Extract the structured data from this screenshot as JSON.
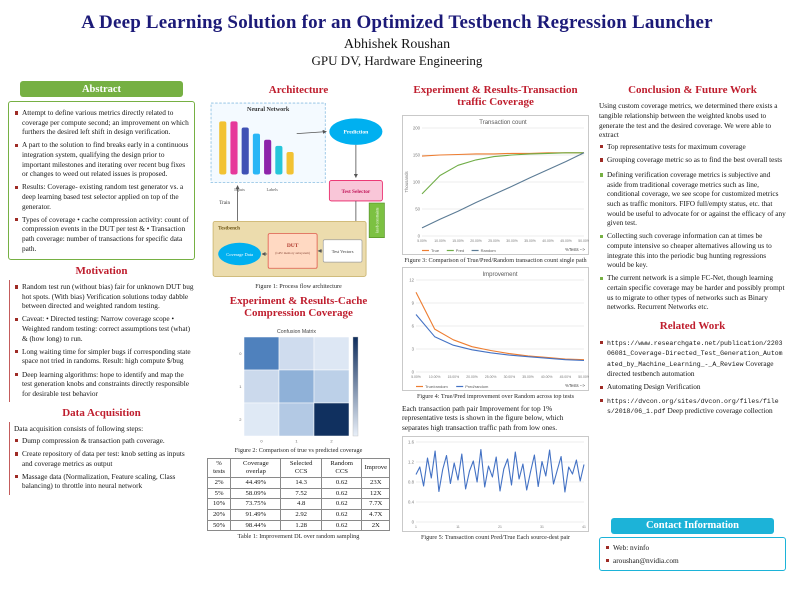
{
  "header": {
    "title": "A Deep Learning Solution for an Optimized Testbench Regression Launcher",
    "author": "Abhishek Roushan",
    "affiliation": "GPU DV, Hardware Engineering"
  },
  "abstract": {
    "heading": "Abstract",
    "bullets": [
      "Attempt to define various metrics directly related to coverage per compute second; an improvement on which furthers the desired left shift in design verification.",
      "A part to the solution to find breaks early in a continuous integration system, qualifying the design prior to important milestones and iterating over recent bug fixes or changes to weed out related issues is proposed.",
      "Results: Coverage- existing random test generator vs. a deep learning based test selector applied on top of the generator.",
      "Types of coverage • cache compression activity: count of compression events in the DUT per test & • Transaction path coverage: number of transactions for specific data path."
    ]
  },
  "motivation": {
    "heading": "Motivation",
    "bullets": [
      "Random test run (without bias) fair for unknown DUT bug hot spots. (With bias) Verification solutions today dabble between directed and weighted random testing.",
      "Caveat: • Directed testing: Narrow coverage scope • Weighted random testing: correct assumptions test (what) & (how long) to run.",
      "Long waiting time for simpler bugs if corresponding state space not tried in randoms. Result: high compute $/bug",
      "Deep learning algorithms: hope to identify and map the test generation knobs and constraints directly responsible for desirable test behavior"
    ]
  },
  "data_acquisition": {
    "heading": "Data Acquisition",
    "intro": "Data acquisition consists of following steps:",
    "bullets": [
      "Dump compression & transaction path coverage.",
      "Create repository of data per test: knob setting as inputs and coverage metrics as output",
      "Massage data (Normalization, Feature scaling, Class balancing) to throttle into neural network"
    ]
  },
  "architecture": {
    "heading": "Architecture",
    "caption": "Figure 1: Process flow architecture",
    "labels": {
      "neural_network": "Neural Network",
      "prediction": "Prediction",
      "test_selector": "Test Selector",
      "train": "Train",
      "inputs": "Inputs",
      "labels": "Labels",
      "testbench": "Testbench",
      "dut": "DUT",
      "dut_sub": "(GPU memory subsystem)",
      "test_vectors": "Test Vectors",
      "coverage_data": "Coverage Data",
      "knob_constraints": "knob constraints"
    }
  },
  "experiment_cache": {
    "heading": "Experiment & Results-Cache Compression Coverage",
    "figure_caption": "Figure 2: Comparison of true vs predicted coverage",
    "table_caption": "Table 1: Improvement DL over random sampling",
    "table": {
      "headers": [
        "% tests",
        "Coverage overlap",
        "Selected CCS",
        "Random CCS",
        "Improve"
      ],
      "rows": [
        [
          "2%",
          "44.49%",
          "14.3",
          "0.62",
          "23X"
        ],
        [
          "5%",
          "58.09%",
          "7.52",
          "0.62",
          "12X"
        ],
        [
          "10%",
          "73.75%",
          "4.8",
          "0.62",
          "7.7X"
        ],
        [
          "20%",
          "91.49%",
          "2.92",
          "0.62",
          "4.7X"
        ],
        [
          "50%",
          "98.44%",
          "1.28",
          "0.62",
          "2X"
        ]
      ]
    }
  },
  "experiment_transaction": {
    "heading": "Experiment & Results-Transaction traffic Coverage",
    "fig3_caption": "Figure 3: Comparison of True/Pred/Random transaction count single path",
    "fig4_caption": "Figure 4: True/Pred improvement over Random across top tests",
    "paragraph": "Each transaction path pair Improvement for top 1% representative tests is shown in the figure below, which separates high transaction traffic path from low ones.",
    "fig5_caption": "Figure 5: Transaction count Pred/True Each source-dest pair"
  },
  "conclusion": {
    "heading": "Conclusion & Future Work",
    "intro": "Using custom coverage metrics, we determined there exists a tangible relationship between the weighted knobs used to generate the test and the desired coverage. We were able to extract",
    "bullets": [
      "Top representative tests for maximum coverage",
      "Grouping coverage metric so as to find the best overall tests"
    ],
    "green_bullets": [
      "Defining verification coverage metrics is subjective and aside from traditional coverage metrics such as line, conditional coverage, we see scope for customized metrics such as traffic monitors. FIFO full/empty status, etc. that would be useful to advocate for or against the efficacy of any given test.",
      "Collecting such coverage information can at times be compute intensive so cheaper alternatives allowing us to integrate this into the periodic bug hunting regressions would be key.",
      "The current network is a simple FC-Net, though learning certain specific coverage may be harder and possibly prompt us to migrate to other types of networks such as Binary networks. Recurrent Networks etc."
    ]
  },
  "related_work": {
    "heading": "Related Work",
    "items": [
      {
        "url": "https://www.researchgate.net/publication/220306081_Coverage-Directed_Test_Generation_Automated_by_Machine_Learning_-_A_Review",
        "text": "Coverage directed testbench automation"
      },
      {
        "url": "",
        "text": "Automating Design Verification"
      },
      {
        "url": "https://dvcon.org/sites/dvcon.org/files/files/2018/06_1.pdf",
        "text": "Deep predictive coverage collection"
      }
    ]
  },
  "contact": {
    "heading": "Contact Information",
    "lines": [
      "Web: nvinfo",
      "aroushan@nvidia.com"
    ]
  },
  "chart_data": [
    {
      "id": "fig2",
      "type": "heatmap",
      "title": "Confusion Matrix",
      "rows": 3,
      "cols": 3,
      "x_ticks": [
        "0",
        "1",
        "2"
      ],
      "y_ticks": [
        "0",
        "1",
        "2"
      ],
      "values": [
        [
          0.36,
          0.08,
          0.04
        ],
        [
          0.07,
          0.22,
          0.1
        ],
        [
          0.03,
          0.12,
          0.62
        ]
      ],
      "cell_colors": [
        [
          "#4f81bd",
          "#cfdcee",
          "#dde7f4"
        ],
        [
          "#cbd9ec",
          "#8fb1d8",
          "#bcd0e8"
        ],
        [
          "#dfe9f5",
          "#b3c9e4",
          "#10305f"
        ]
      ],
      "colorbar": true
    },
    {
      "id": "fig3",
      "type": "line",
      "title": "Transaction count",
      "ylabel": "Thousands",
      "xlabel": "%Tests -->",
      "x_labels": [
        "5.00%",
        "10.00%",
        "15.00%",
        "20.00%",
        "25.00%",
        "30.00%",
        "35.00%",
        "40.00%",
        "45.00%",
        "50.00%"
      ],
      "ylim": [
        0,
        200
      ],
      "series": [
        {
          "name": "True",
          "color": "#ed7d31",
          "values": [
            148,
            150,
            151,
            152,
            152,
            153,
            153,
            154,
            154,
            154
          ]
        },
        {
          "name": "Pred",
          "color": "#70ad47",
          "values": [
            78,
            112,
            131,
            141,
            147,
            150,
            152,
            153,
            154,
            154
          ]
        },
        {
          "name": "Random",
          "color": "#5b7b95",
          "values": [
            15,
            31,
            46,
            62,
            77,
            92,
            108,
            123,
            138,
            154
          ]
        }
      ]
    },
    {
      "id": "fig4",
      "type": "line",
      "title": "Improvement",
      "xlabel": "%Tests -->",
      "x_labels": [
        "5.00%",
        "10.00%",
        "15.00%",
        "20.00%",
        "25.00%",
        "30.00%",
        "35.00%",
        "40.00%",
        "45.00%",
        "50.00%"
      ],
      "ylim": [
        0,
        12
      ],
      "series": [
        {
          "name": "True/random",
          "color": "#ed7d31",
          "values": [
            10.4,
            5.6,
            4.2,
            3.3,
            2.8,
            2.4,
            2.1,
            1.9,
            1.7,
            1.6
          ]
        },
        {
          "name": "Pred/random",
          "color": "#4472c4",
          "values": [
            7.5,
            4.6,
            3.5,
            2.9,
            2.5,
            2.2,
            2.0,
            1.8,
            1.6,
            1.5
          ]
        }
      ]
    },
    {
      "id": "fig5",
      "type": "line",
      "title": "",
      "x_labels": [
        "1",
        "11",
        "21",
        "31",
        "41"
      ],
      "ylim": [
        0,
        1.6
      ],
      "series": [
        {
          "name": "Pred/True",
          "color": "#4472c4",
          "values": [
            0.95,
            1.1,
            0.72,
            1.28,
            0.88,
            1.42,
            0.61,
            1.05,
            1.33,
            0.77,
            1.18,
            0.84,
            1.36,
            0.66,
            1.02,
            1.22,
            0.8,
            1.45,
            0.7,
            1.12,
            0.9,
            1.3,
            0.62,
            1.06,
            1.26,
            0.74,
            1.4,
            0.86,
            1.16,
            0.64,
            1.0,
            1.34,
            0.71,
            1.21,
            0.92,
            1.44,
            0.76,
            1.04,
            1.31,
            0.6,
            1.1,
            0.96,
            1.24,
            0.82,
            1.15
          ]
        }
      ]
    }
  ]
}
